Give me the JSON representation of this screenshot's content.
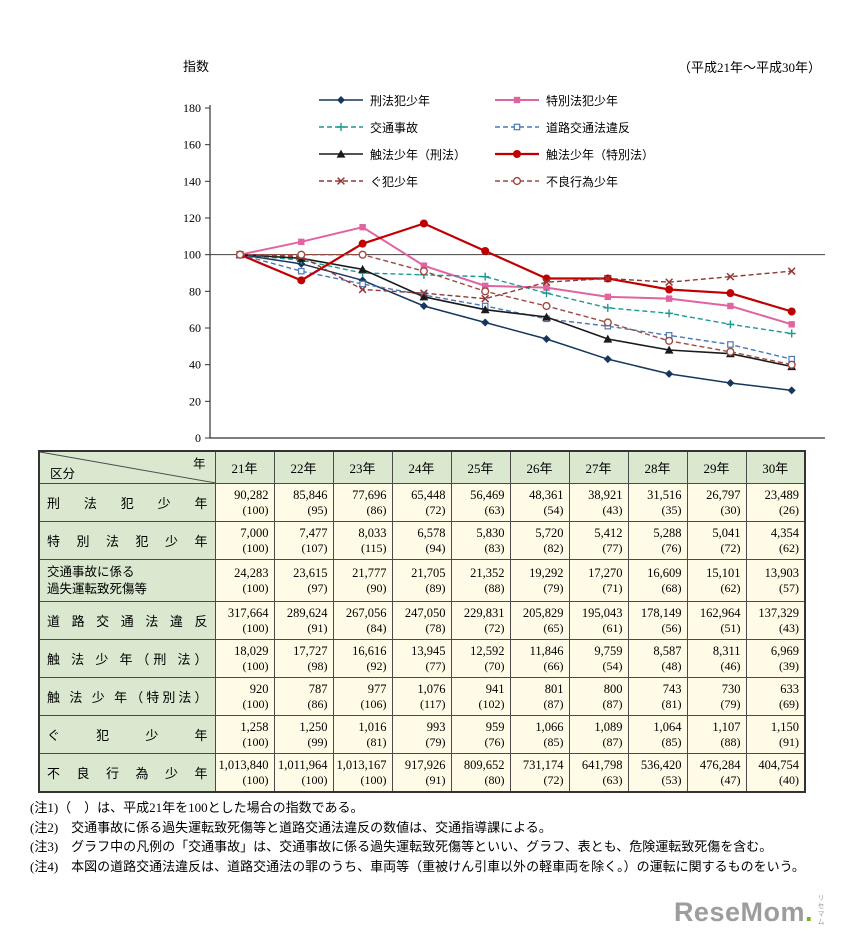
{
  "header": {
    "y_axis_title": "指数",
    "period": "（平成21年～平成30年）"
  },
  "chart_data": {
    "type": "line",
    "ylabel": "指数",
    "categories": [
      "21年",
      "22年",
      "23年",
      "24年",
      "25年",
      "26年",
      "27年",
      "28年",
      "29年",
      "30年"
    ],
    "ylim": [
      0,
      180
    ],
    "ytick_step": 20,
    "reference_line": 100,
    "legend_position": "top-center",
    "series": [
      {
        "name": "刑法犯少年",
        "color": "#17365d",
        "dash": "solid",
        "marker": "diamond",
        "width": 1.5,
        "values": [
          100,
          95,
          86,
          72,
          63,
          54,
          43,
          35,
          30,
          26
        ]
      },
      {
        "name": "特別法犯少年",
        "color": "#e064a0",
        "dash": "solid",
        "marker": "square",
        "width": 2,
        "values": [
          100,
          107,
          115,
          94,
          83,
          82,
          77,
          76,
          72,
          62
        ]
      },
      {
        "name": "交通事故",
        "color": "#1b9a92",
        "dash": "dashed",
        "marker": "plus",
        "width": 1.4,
        "values": [
          100,
          97,
          90,
          89,
          88,
          79,
          71,
          68,
          62,
          57
        ]
      },
      {
        "name": "道路交通法違反",
        "color": "#4878b8",
        "dash": "dashed",
        "marker": "open-square",
        "width": 1.4,
        "values": [
          100,
          91,
          84,
          78,
          72,
          65,
          61,
          56,
          51,
          43
        ]
      },
      {
        "name": "触法少年（刑法）",
        "color": "#1a1a1a",
        "dash": "solid",
        "marker": "triangle",
        "width": 1.6,
        "values": [
          100,
          98,
          92,
          77,
          70,
          66,
          54,
          48,
          46,
          39
        ]
      },
      {
        "name": "触法少年（特別法）",
        "color": "#c00000",
        "dash": "solid",
        "marker": "circle",
        "width": 2.2,
        "values": [
          100,
          86,
          106,
          117,
          102,
          87,
          87,
          81,
          79,
          69
        ]
      },
      {
        "name": "ぐ犯少年",
        "color": "#8f3836",
        "dash": "dashed",
        "marker": "x",
        "width": 1.4,
        "values": [
          100,
          99,
          81,
          79,
          76,
          85,
          87,
          85,
          88,
          91
        ]
      },
      {
        "name": "不良行為少年",
        "color": "#9c4a42",
        "dash": "dashed",
        "marker": "open-circle",
        "width": 1.4,
        "values": [
          100,
          100,
          100,
          91,
          80,
          72,
          63,
          53,
          47,
          40
        ]
      }
    ]
  },
  "table": {
    "corner": {
      "top": "年",
      "bottom": "区分"
    },
    "years": [
      "21年",
      "22年",
      "23年",
      "24年",
      "25年",
      "26年",
      "27年",
      "28年",
      "29年",
      "30年"
    ],
    "rows": [
      {
        "label": "刑 法 犯 少 年",
        "values": [
          "90,282",
          "85,846",
          "77,696",
          "65,448",
          "56,469",
          "48,361",
          "38,921",
          "31,516",
          "26,797",
          "23,489"
        ],
        "indexes": [
          "(100)",
          "(95)",
          "(86)",
          "(72)",
          "(63)",
          "(54)",
          "(43)",
          "(35)",
          "(30)",
          "(26)"
        ]
      },
      {
        "label": "特 別 法 犯 少 年",
        "values": [
          "7,000",
          "7,477",
          "8,033",
          "6,578",
          "5,830",
          "5,720",
          "5,412",
          "5,288",
          "5,041",
          "4,354"
        ],
        "indexes": [
          "(100)",
          "(107)",
          "(115)",
          "(94)",
          "(83)",
          "(82)",
          "(77)",
          "(76)",
          "(72)",
          "(62)"
        ]
      },
      {
        "lines": [
          "交通事故に係る",
          "過失運転致死傷等"
        ],
        "values": [
          "24,283",
          "23,615",
          "21,777",
          "21,705",
          "21,352",
          "19,292",
          "17,270",
          "16,609",
          "15,101",
          "13,903"
        ],
        "indexes": [
          "(100)",
          "(97)",
          "(90)",
          "(89)",
          "(88)",
          "(79)",
          "(71)",
          "(68)",
          "(62)",
          "(57)"
        ]
      },
      {
        "label": "道 路 交 通 法 違 反",
        "values": [
          "317,664",
          "289,624",
          "267,056",
          "247,050",
          "229,831",
          "205,829",
          "195,043",
          "178,149",
          "162,964",
          "137,329"
        ],
        "indexes": [
          "(100)",
          "(91)",
          "(84)",
          "(78)",
          "(72)",
          "(65)",
          "(61)",
          "(56)",
          "(51)",
          "(43)"
        ]
      },
      {
        "label": "触 法 少 年（刑 法）",
        "values": [
          "18,029",
          "17,727",
          "16,616",
          "13,945",
          "12,592",
          "11,846",
          "9,759",
          "8,587",
          "8,311",
          "6,969"
        ],
        "indexes": [
          "(100)",
          "(98)",
          "(92)",
          "(77)",
          "(70)",
          "(66)",
          "(54)",
          "(48)",
          "(46)",
          "(39)"
        ]
      },
      {
        "label": "触 法 少 年（特別法）",
        "values": [
          "920",
          "787",
          "977",
          "1,076",
          "941",
          "801",
          "800",
          "743",
          "730",
          "633"
        ],
        "indexes": [
          "(100)",
          "(86)",
          "(106)",
          "(117)",
          "(102)",
          "(87)",
          "(87)",
          "(81)",
          "(79)",
          "(69)"
        ]
      },
      {
        "label": "ぐ 犯 少 年",
        "values": [
          "1,258",
          "1,250",
          "1,016",
          "993",
          "959",
          "1,066",
          "1,089",
          "1,064",
          "1,107",
          "1,150"
        ],
        "indexes": [
          "(100)",
          "(99)",
          "(81)",
          "(79)",
          "(76)",
          "(85)",
          "(87)",
          "(85)",
          "(88)",
          "(91)"
        ]
      },
      {
        "label": "不 良 行 為 少 年",
        "values": [
          "1,013,840",
          "1,011,964",
          "1,013,167",
          "917,926",
          "809,652",
          "731,174",
          "641,798",
          "536,420",
          "476,284",
          "404,754"
        ],
        "indexes": [
          "(100)",
          "(100)",
          "(100)",
          "(91)",
          "(80)",
          "(72)",
          "(63)",
          "(53)",
          "(47)",
          "(40)"
        ]
      }
    ]
  },
  "notes": [
    "(注1)（　）は、平成21年を100とした場合の指数である。",
    "(注2)　交通事故に係る過失運転致死傷等と道路交通法違反の数値は、交通指導課による。",
    "(注3)　グラフ中の凡例の「交通事故」は、交通事故に係る過失運転致死傷等といい、グラフ、表とも、危険運転致死傷を含む。",
    "(注4)　本図の道路交通法違反は、道路交通法の罪のうち、車両等（重被けん引車以外の軽車両を除く。）の運転に関するものをいう。"
  ],
  "logo": {
    "text": "ReseMom",
    "dot": ".",
    "kana": "リセマム"
  }
}
